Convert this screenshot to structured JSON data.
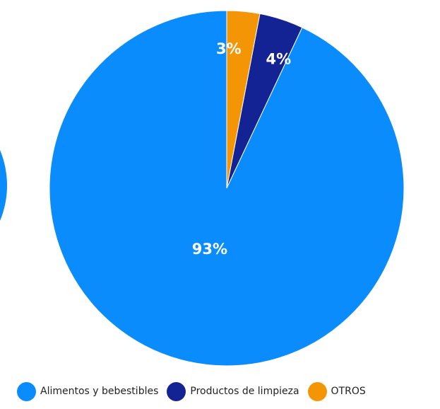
{
  "chart_data": {
    "type": "pie",
    "title": "",
    "slices": [
      {
        "label": "OTROS",
        "value": 3,
        "display": "3%",
        "color": "#f49505"
      },
      {
        "label": "Productos de limpieza",
        "value": 4,
        "display": "4%",
        "color": "#142394"
      },
      {
        "label": "Alimentos y bebestibles",
        "value": 93,
        "display": "93%",
        "color": "#0a8cfc"
      }
    ],
    "legend": {
      "position": "bottom",
      "items": [
        {
          "label": "Alimentos y bebestibles",
          "color": "#0a8cfc"
        },
        {
          "label": "Productos de limpieza",
          "color": "#142394"
        },
        {
          "label": "OTROS",
          "color": "#f49505"
        }
      ]
    },
    "start_angle": "12 o'clock",
    "direction": "clockwise"
  }
}
